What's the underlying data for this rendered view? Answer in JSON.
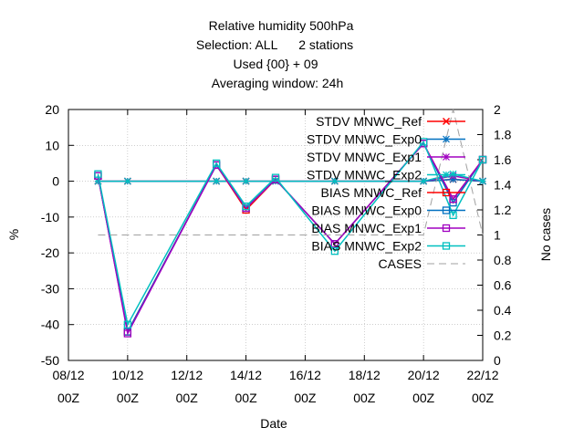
{
  "chart_data": {
    "type": "line",
    "title_lines": [
      "Relative humidity 500hPa",
      "Selection: ALL      2 stations",
      "Used {00} + 09",
      "Averaging window: 24h"
    ],
    "xlabel": "Date",
    "ylabel": "%",
    "y2label": "No cases",
    "x_ticks": [
      {
        "day": 8,
        "top": "08/12",
        "bottom": "00Z"
      },
      {
        "day": 10,
        "top": "10/12",
        "bottom": "00Z"
      },
      {
        "day": 12,
        "top": "12/12",
        "bottom": "00Z"
      },
      {
        "day": 14,
        "top": "14/12",
        "bottom": "00Z"
      },
      {
        "day": 16,
        "top": "16/12",
        "bottom": "00Z"
      },
      {
        "day": 18,
        "top": "18/12",
        "bottom": "00Z"
      },
      {
        "day": 20,
        "top": "20/12",
        "bottom": "00Z"
      },
      {
        "day": 22,
        "top": "22/12",
        "bottom": "00Z"
      }
    ],
    "xlim": [
      8,
      22
    ],
    "ylim": [
      -50,
      20
    ],
    "y_ticks": [
      "-50",
      "-40",
      "-30",
      "-20",
      "-10",
      "0",
      "10",
      "20"
    ],
    "y2lim": [
      0,
      2
    ],
    "y2_ticks": [
      "0",
      "0.2",
      "0.4",
      "0.6",
      "0.8",
      "1",
      "1.2",
      "1.4",
      "1.6",
      "1.8",
      "2"
    ],
    "grid": "on",
    "legend_position": "top-right",
    "series": [
      {
        "name": "STDV MNWC_Ref",
        "color": "#ff0000",
        "marker": "x",
        "axis": "y",
        "x": [
          9,
          10,
          13,
          14,
          15,
          17,
          20,
          21,
          22
        ],
        "y": [
          0,
          0,
          0,
          0,
          0,
          0,
          0,
          0.5,
          0
        ]
      },
      {
        "name": "STDV MNWC_Exp0",
        "color": "#0070c0",
        "marker": "star",
        "axis": "y",
        "x": [
          9,
          10,
          13,
          14,
          15,
          17,
          20,
          21,
          22
        ],
        "y": [
          0,
          0,
          0,
          0,
          0,
          0,
          0,
          0.5,
          0
        ]
      },
      {
        "name": "STDV MNWC_Exp1",
        "color": "#a000c0",
        "marker": "star",
        "axis": "y",
        "x": [
          9,
          10,
          13,
          14,
          15,
          17,
          20,
          21,
          22
        ],
        "y": [
          0,
          0,
          0,
          0,
          0,
          0,
          0,
          1.5,
          0
        ]
      },
      {
        "name": "STDV MNWC_Exp2",
        "color": "#00c0c0",
        "marker": "star",
        "axis": "y",
        "x": [
          9,
          10,
          13,
          14,
          15,
          17,
          20,
          21,
          22
        ],
        "y": [
          0,
          0,
          0,
          0,
          0,
          0,
          0,
          2,
          0
        ]
      },
      {
        "name": "BIAS MNWC_Ref",
        "color": "#ff0000",
        "marker": "square",
        "axis": "y",
        "x": [
          9,
          10,
          13,
          14,
          15,
          17,
          20,
          21,
          22
        ],
        "y": [
          1.5,
          -42,
          4.5,
          -8,
          0.5,
          -17.5,
          10.5,
          -5,
          6
        ]
      },
      {
        "name": "BIAS MNWC_Exp0",
        "color": "#0070c0",
        "marker": "square",
        "axis": "y",
        "x": [
          9,
          10,
          13,
          14,
          15,
          17,
          20,
          21,
          22
        ],
        "y": [
          1.5,
          -42,
          4.5,
          -7.5,
          0.5,
          -17.5,
          10.5,
          -6,
          6
        ]
      },
      {
        "name": "BIAS MNWC_Exp1",
        "color": "#a000c0",
        "marker": "square",
        "axis": "y",
        "x": [
          9,
          10,
          13,
          14,
          15,
          17,
          20,
          21,
          22
        ],
        "y": [
          1.5,
          -42.5,
          4.5,
          -7.5,
          0.5,
          -17.5,
          10.5,
          -5,
          6
        ]
      },
      {
        "name": "BIAS MNWC_Exp2",
        "color": "#00c0c0",
        "marker": "square",
        "axis": "y",
        "x": [
          9,
          10,
          13,
          14,
          15,
          17,
          20,
          21,
          22
        ],
        "y": [
          2,
          -40,
          5,
          -7,
          1,
          -19.5,
          11,
          -9.5,
          6
        ]
      },
      {
        "name": "CASES",
        "color": "#a0a0a0",
        "marker": "none",
        "dash": true,
        "axis": "y2",
        "x": [
          9,
          10,
          13,
          14,
          15,
          17,
          20,
          21,
          22
        ],
        "y": [
          1,
          1,
          1,
          1,
          1,
          1,
          1,
          2,
          1
        ]
      }
    ]
  }
}
